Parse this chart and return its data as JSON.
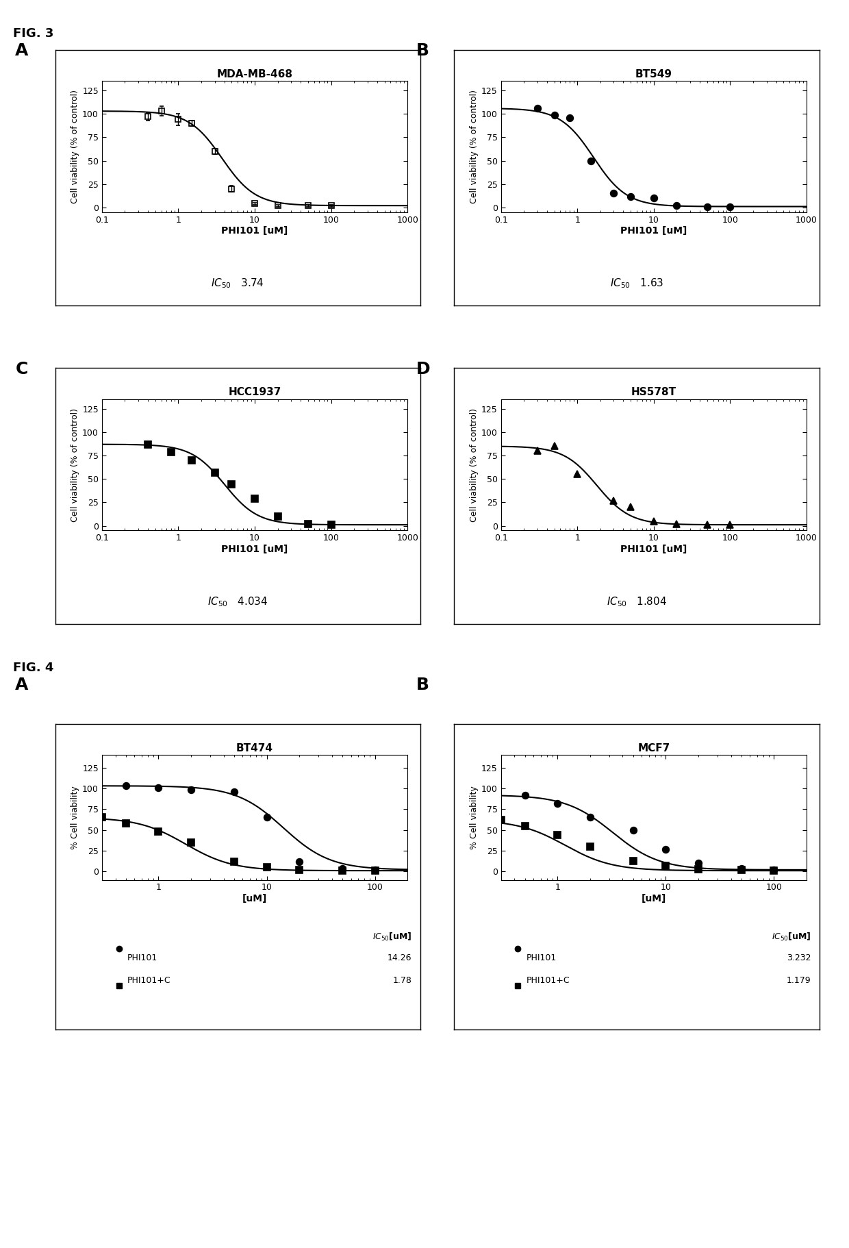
{
  "fig3_label": "FIG. 3",
  "fig4_label": "FIG. 4",
  "panels_fig3": {
    "A": {
      "title": "MDA-MB-468",
      "xlabel": "PHI101 [uM]",
      "ylabel": "Cell viability (% of control)",
      "ic50": 3.74,
      "ic50_str": "3.74",
      "xdata": [
        0.4,
        0.6,
        1.0,
        1.5,
        3.0,
        5.0,
        10.0,
        20.0,
        50.0,
        100.0
      ],
      "ydata": [
        97,
        103,
        94,
        90,
        60,
        20,
        4,
        2,
        2,
        2
      ],
      "yerr": [
        4,
        5,
        6,
        3,
        3,
        3,
        1,
        1,
        1,
        1
      ],
      "marker": "s",
      "markersize": 6,
      "fillstyle": "none",
      "xlim": [
        0.1,
        1000
      ],
      "ylim": [
        -5,
        135
      ],
      "yticks": [
        0,
        25,
        50,
        75,
        100,
        125
      ],
      "xtick_vals": [
        0.1,
        1,
        10,
        100,
        1000
      ],
      "xtick_labels": [
        "0.1",
        "1",
        "10",
        "100",
        "1000"
      ]
    },
    "B": {
      "title": "BT549",
      "xlabel": "PHI101 [uM]",
      "ylabel": "Cell viability (% of control)",
      "ic50": 1.63,
      "ic50_str": "1.63",
      "xdata": [
        0.3,
        0.5,
        0.8,
        1.5,
        3.0,
        5.0,
        10.0,
        20.0,
        50.0,
        100.0
      ],
      "ydata": [
        106,
        99,
        96,
        50,
        15,
        12,
        10,
        2,
        1,
        1
      ],
      "yerr": null,
      "marker": "o",
      "markersize": 7,
      "fillstyle": "full",
      "xlim": [
        0.1,
        1000
      ],
      "ylim": [
        -5,
        135
      ],
      "yticks": [
        0,
        25,
        50,
        75,
        100,
        125
      ],
      "xtick_vals": [
        0.1,
        1,
        10,
        100,
        1000
      ],
      "xtick_labels": [
        "0.1",
        "1",
        "10",
        "100",
        "1000"
      ]
    },
    "C": {
      "title": "HCC1937",
      "xlabel": "PHI101 [uM]",
      "ylabel": "Cell viability (% of control)",
      "ic50": 4.034,
      "ic50_str": "4.034",
      "xdata": [
        0.4,
        0.8,
        1.5,
        3.0,
        5.0,
        10.0,
        20.0,
        50.0,
        100.0
      ],
      "ydata": [
        87,
        79,
        70,
        57,
        44,
        29,
        10,
        2,
        1
      ],
      "yerr": null,
      "marker": "s",
      "markersize": 7,
      "fillstyle": "full",
      "xlim": [
        0.1,
        1000
      ],
      "ylim": [
        -5,
        135
      ],
      "yticks": [
        0,
        25,
        50,
        75,
        100,
        125
      ],
      "xtick_vals": [
        0.1,
        1,
        10,
        100,
        1000
      ],
      "xtick_labels": [
        "0.1",
        "1",
        "10",
        "100",
        "1000"
      ]
    },
    "D": {
      "title": "HS578T",
      "xlabel": "PHI101 [uM]",
      "ylabel": "Cell viability (% of control)",
      "ic50": 1.804,
      "ic50_str": "1.804",
      "xdata": [
        0.3,
        0.5,
        1.0,
        3.0,
        5.0,
        10.0,
        20.0,
        50.0,
        100.0
      ],
      "ydata": [
        80,
        85,
        55,
        27,
        20,
        5,
        2,
        1,
        1
      ],
      "yerr": null,
      "marker": "^",
      "markersize": 7,
      "fillstyle": "full",
      "xlim": [
        0.1,
        1000
      ],
      "ylim": [
        -5,
        135
      ],
      "yticks": [
        0,
        25,
        50,
        75,
        100,
        125
      ],
      "xtick_vals": [
        0.1,
        1,
        10,
        100,
        1000
      ],
      "xtick_labels": [
        "0.1",
        "1",
        "10",
        "100",
        "1000"
      ]
    }
  },
  "panels_fig4": {
    "E": {
      "title": "BT474",
      "xlabel": "[uM]",
      "ylabel": "% Cell viability",
      "xlim": [
        0.3,
        200
      ],
      "ylim": [
        -10,
        140
      ],
      "yticks": [
        0,
        25,
        50,
        75,
        100,
        125
      ],
      "xtick_vals": [
        1,
        10,
        100
      ],
      "xtick_labels": [
        "1",
        "10",
        "100"
      ],
      "series": [
        {
          "label": "PHI101",
          "ic50": 14.26,
          "ic50_str": "14.26",
          "xdata": [
            0.5,
            1.0,
            2.0,
            5.0,
            10.0,
            20.0,
            50.0,
            100.0
          ],
          "ydata": [
            103,
            101,
            98,
            96,
            65,
            12,
            4,
            2
          ],
          "marker": "o",
          "markersize": 7,
          "fillstyle": "full"
        },
        {
          "label": "PHI101+C",
          "ic50": 1.78,
          "ic50_str": "1.78",
          "xdata": [
            0.3,
            0.5,
            1.0,
            2.0,
            5.0,
            10.0,
            20.0,
            50.0,
            100.0
          ],
          "ydata": [
            65,
            58,
            48,
            35,
            12,
            5,
            2,
            1,
            1
          ],
          "marker": "s",
          "markersize": 7,
          "fillstyle": "full"
        }
      ]
    },
    "F": {
      "title": "MCF7",
      "xlabel": "[uM]",
      "ylabel": "% Cell viability",
      "xlim": [
        0.3,
        200
      ],
      "ylim": [
        -10,
        140
      ],
      "yticks": [
        0,
        25,
        50,
        75,
        100,
        125
      ],
      "xtick_vals": [
        1,
        10,
        100
      ],
      "xtick_labels": [
        "1",
        "10",
        "100"
      ],
      "series": [
        {
          "label": "PHI101",
          "ic50": 3.232,
          "ic50_str": "3.232",
          "xdata": [
            0.5,
            1.0,
            2.0,
            5.0,
            10.0,
            20.0,
            50.0,
            100.0
          ],
          "ydata": [
            92,
            82,
            65,
            50,
            27,
            10,
            4,
            2
          ],
          "marker": "o",
          "markersize": 7,
          "fillstyle": "full"
        },
        {
          "label": "PHI101+C",
          "ic50": 1.179,
          "ic50_str": "1.179",
          "xdata": [
            0.3,
            0.5,
            1.0,
            2.0,
            5.0,
            10.0,
            20.0,
            50.0,
            100.0
          ],
          "ydata": [
            62,
            55,
            44,
            30,
            13,
            7,
            3,
            2,
            1
          ],
          "marker": "s",
          "markersize": 7,
          "fillstyle": "full"
        }
      ]
    }
  }
}
